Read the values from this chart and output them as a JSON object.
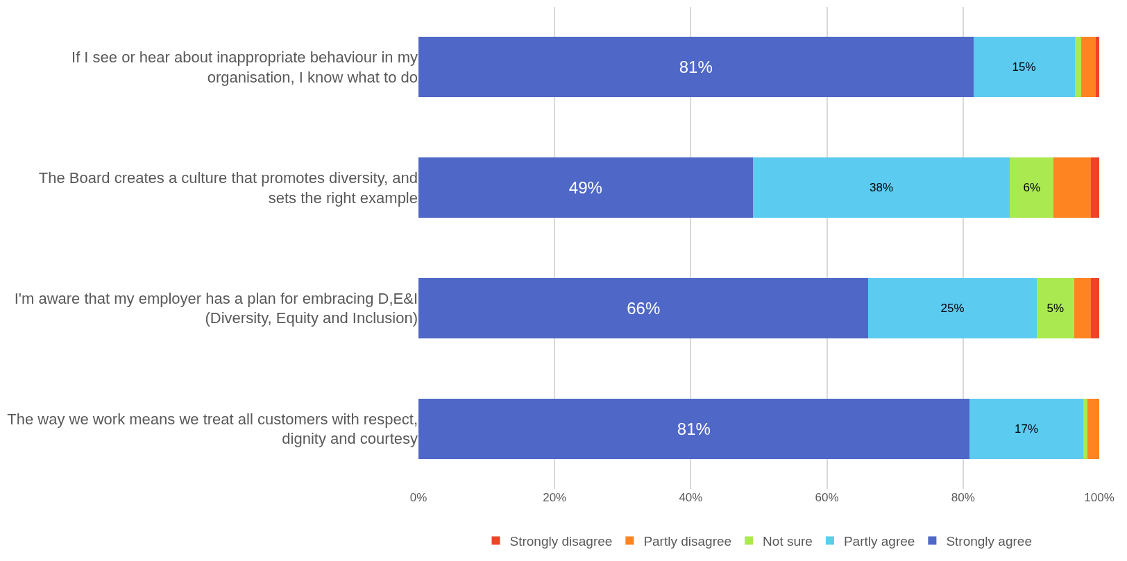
{
  "chart_data": {
    "type": "bar",
    "orientation": "horizontal",
    "stacked": true,
    "categories": [
      "If I see or hear about inappropriate behaviour in my organisation, I know what to do",
      "The Board creates a culture that promotes diversity, and sets the right example",
      "I'm aware that my employer has a plan for embracing D,E&I (Diversity, Equity and Inclusion)",
      "The way we work means we treat all customers with respect, dignity and courtesy"
    ],
    "series": [
      {
        "name": "Strongly agree",
        "color": "#4f67c6",
        "values": [
          81.5,
          49.1,
          66.1,
          80.9
        ],
        "value_labels": [
          "81%",
          "49%",
          "66%",
          "81%"
        ]
      },
      {
        "name": "Partly agree",
        "color": "#5ccbf0",
        "values": [
          14.9,
          37.8,
          24.7,
          16.8
        ],
        "value_labels": [
          "15%",
          "38%",
          "25%",
          "17%"
        ]
      },
      {
        "name": "Not sure",
        "color": "#aae94f",
        "values": [
          0.9,
          6.4,
          5.5,
          0.6
        ],
        "value_labels": [
          null,
          "6%",
          "5%",
          null
        ]
      },
      {
        "name": "Partly disagree",
        "color": "#fd8421",
        "values": [
          2.2,
          5.5,
          2.5,
          1.7
        ],
        "value_labels": [
          null,
          null,
          null,
          null
        ]
      },
      {
        "name": "Strongly disagree",
        "color": "#f04228",
        "values": [
          0.5,
          1.2,
          1.2,
          0.0
        ],
        "value_labels": [
          null,
          null,
          null,
          null
        ]
      }
    ],
    "xlim": [
      0,
      100
    ],
    "xticks": [
      {
        "value": 0,
        "label": "0%"
      },
      {
        "value": 20,
        "label": "20%"
      },
      {
        "value": 40,
        "label": "40%"
      },
      {
        "value": 60,
        "label": "60%"
      },
      {
        "value": 80,
        "label": "80%"
      },
      {
        "value": 100,
        "label": "100%"
      }
    ],
    "grid": "x",
    "legend": "bottom"
  }
}
